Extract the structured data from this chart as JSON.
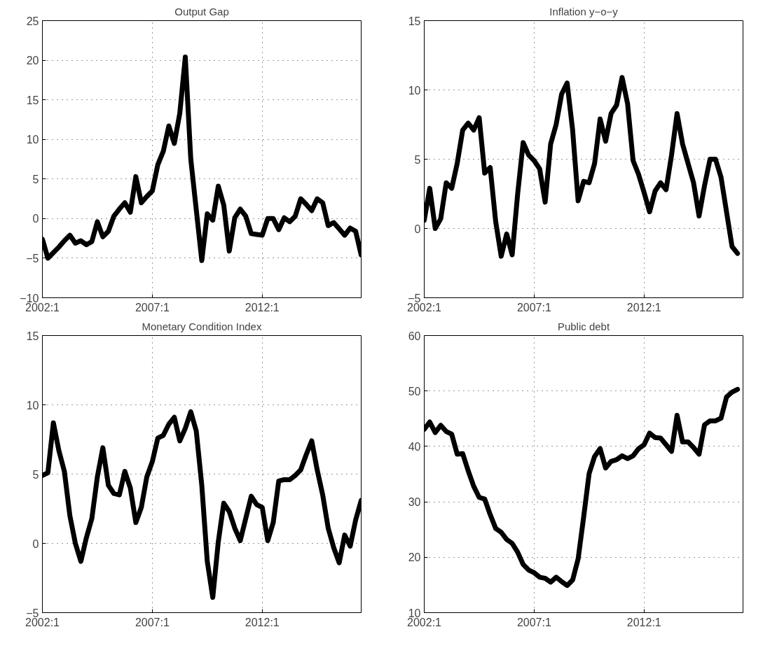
{
  "chart_data": [
    {
      "type": "line",
      "title": "Output Gap",
      "line_style": "solid",
      "grid": true,
      "categories": [
        "2002:1",
        null,
        null,
        null,
        null,
        null,
        null,
        null,
        null,
        null,
        null,
        null,
        null,
        null,
        null,
        null,
        null,
        null,
        null,
        null,
        "2007:1",
        null,
        null,
        null,
        null,
        null,
        null,
        null,
        null,
        null,
        null,
        null,
        null,
        null,
        null,
        null,
        null,
        null,
        null,
        null,
        "2012:1",
        null,
        null,
        null,
        null,
        null,
        null,
        null,
        null,
        null,
        null,
        null,
        null,
        null,
        null,
        null,
        null,
        null,
        null
      ],
      "ylim": [
        -10,
        25
      ],
      "yticks": [
        -10,
        -5,
        0,
        5,
        10,
        15,
        20,
        25
      ],
      "series": [
        {
          "color": "#000000",
          "values": [
            -2.6,
            -5.0,
            -4.3,
            -3.6,
            -2.8,
            -2.1,
            -3.1,
            -2.8,
            -3.3,
            -2.9,
            -0.4,
            -2.3,
            -1.6,
            0.3,
            1.2,
            2.0,
            0.8,
            5.3,
            2.0,
            2.8,
            3.5,
            6.8,
            8.5,
            11.7,
            9.5,
            13.3,
            20.4,
            7.5,
            1.1,
            -5.3,
            0.6,
            -0.2,
            4.1,
            1.7,
            -4.1,
            0.1,
            1.2,
            0.3,
            -1.9,
            -2.0,
            -2.1,
            0.0,
            0.0,
            -1.4,
            0.1,
            -0.4,
            0.3,
            2.5,
            1.8,
            1.0,
            2.5,
            2.0,
            -0.9,
            -0.5,
            -1.3,
            -2.1,
            -1.2,
            -1.6,
            -4.6
          ]
        }
      ]
    },
    {
      "type": "line",
      "title": "Inflation y−o−y",
      "line_style": "solid",
      "grid": true,
      "categories": [
        "2002:1",
        null,
        null,
        null,
        null,
        null,
        null,
        null,
        null,
        null,
        null,
        null,
        null,
        null,
        null,
        null,
        null,
        null,
        null,
        null,
        "2007:1",
        null,
        null,
        null,
        null,
        null,
        null,
        null,
        null,
        null,
        null,
        null,
        null,
        null,
        null,
        null,
        null,
        null,
        null,
        null,
        "2012:1",
        null,
        null,
        null,
        null,
        null,
        null,
        null,
        null,
        null,
        null,
        null,
        null,
        null,
        null,
        null,
        null,
        null,
        null
      ],
      "ylim": [
        -5,
        15
      ],
      "yticks": [
        -5,
        0,
        5,
        10,
        15
      ],
      "series": [
        {
          "color": "#000000",
          "values": [
            0.6,
            2.9,
            0.0,
            0.7,
            3.3,
            2.9,
            4.7,
            7.1,
            7.6,
            7.1,
            8.0,
            4.0,
            4.4,
            0.5,
            -2.0,
            -0.4,
            -1.9,
            2.5,
            6.2,
            5.3,
            4.9,
            4.3,
            1.9,
            6.1,
            7.5,
            9.7,
            10.5,
            7.1,
            2.0,
            3.4,
            3.3,
            4.7,
            7.9,
            6.3,
            8.3,
            8.9,
            10.9,
            9.0,
            4.9,
            3.9,
            2.6,
            1.2,
            2.7,
            3.3,
            2.8,
            5.3,
            8.3,
            6.1,
            4.7,
            3.3,
            0.9,
            3.1,
            5.0,
            5.0,
            3.7,
            1.2,
            -1.3,
            -1.8,
            null
          ]
        }
      ]
    },
    {
      "type": "line",
      "title": "Monetary Condition Index",
      "line_style": "solid",
      "grid": true,
      "categories": [
        "2002:1",
        null,
        null,
        null,
        null,
        null,
        null,
        null,
        null,
        null,
        null,
        null,
        null,
        null,
        null,
        null,
        null,
        null,
        null,
        null,
        "2007:1",
        null,
        null,
        null,
        null,
        null,
        null,
        null,
        null,
        null,
        null,
        null,
        null,
        null,
        null,
        null,
        null,
        null,
        null,
        null,
        "2012:1",
        null,
        null,
        null,
        null,
        null,
        null,
        null,
        null,
        null,
        null,
        null,
        null,
        null,
        null,
        null,
        null,
        null,
        null
      ],
      "ylim": [
        -5,
        15
      ],
      "yticks": [
        -5,
        0,
        5,
        10,
        15
      ],
      "series": [
        {
          "color": "#000000",
          "values": [
            4.9,
            5.1,
            8.7,
            6.7,
            5.2,
            2.0,
            0.0,
            -1.3,
            0.4,
            1.8,
            4.8,
            6.9,
            4.2,
            3.6,
            3.5,
            5.2,
            4.0,
            1.5,
            2.6,
            4.8,
            5.9,
            7.6,
            7.8,
            8.6,
            9.1,
            7.4,
            8.3,
            9.5,
            8.1,
            4.2,
            -1.3,
            -3.9,
            0.1,
            2.9,
            2.3,
            1.1,
            0.2,
            1.8,
            3.4,
            2.8,
            2.6,
            0.2,
            1.5,
            4.5,
            4.6,
            4.6,
            4.9,
            5.3,
            6.4,
            7.4,
            5.3,
            3.5,
            1.1,
            -0.3,
            -1.4,
            0.6,
            -0.2,
            1.7,
            3.1
          ]
        }
      ]
    },
    {
      "type": "line",
      "title": "Public debt",
      "line_style": "solid",
      "grid": true,
      "categories": [
        "2002:1",
        null,
        null,
        null,
        null,
        null,
        null,
        null,
        null,
        null,
        null,
        null,
        null,
        null,
        null,
        null,
        null,
        null,
        null,
        null,
        "2007:1",
        null,
        null,
        null,
        null,
        null,
        null,
        null,
        null,
        null,
        null,
        null,
        null,
        null,
        null,
        null,
        null,
        null,
        null,
        null,
        "2012:1",
        null,
        null,
        null,
        null,
        null,
        null,
        null,
        null,
        null,
        null,
        null,
        null,
        null,
        null,
        null,
        null,
        null,
        null
      ],
      "ylim": [
        10,
        60
      ],
      "yticks": [
        10,
        20,
        30,
        40,
        50,
        60
      ],
      "series": [
        {
          "color": "#000000",
          "values": [
            43.1,
            44.4,
            42.5,
            43.8,
            42.7,
            42.2,
            38.6,
            38.7,
            35.6,
            32.8,
            30.8,
            30.5,
            27.7,
            25.2,
            24.5,
            23.2,
            22.5,
            20.9,
            18.7,
            17.7,
            17.2,
            16.4,
            16.2,
            15.5,
            16.4,
            15.6,
            14.9,
            15.9,
            19.7,
            27.2,
            35.1,
            38.2,
            39.6,
            36.1,
            37.3,
            37.6,
            38.3,
            37.8,
            38.3,
            39.6,
            40.3,
            42.4,
            41.6,
            41.5,
            40.3,
            39.1,
            45.6,
            40.8,
            40.8,
            39.8,
            38.6,
            43.9,
            44.6,
            44.6,
            45.1,
            48.9,
            49.8,
            50.3,
            null
          ]
        }
      ]
    }
  ]
}
